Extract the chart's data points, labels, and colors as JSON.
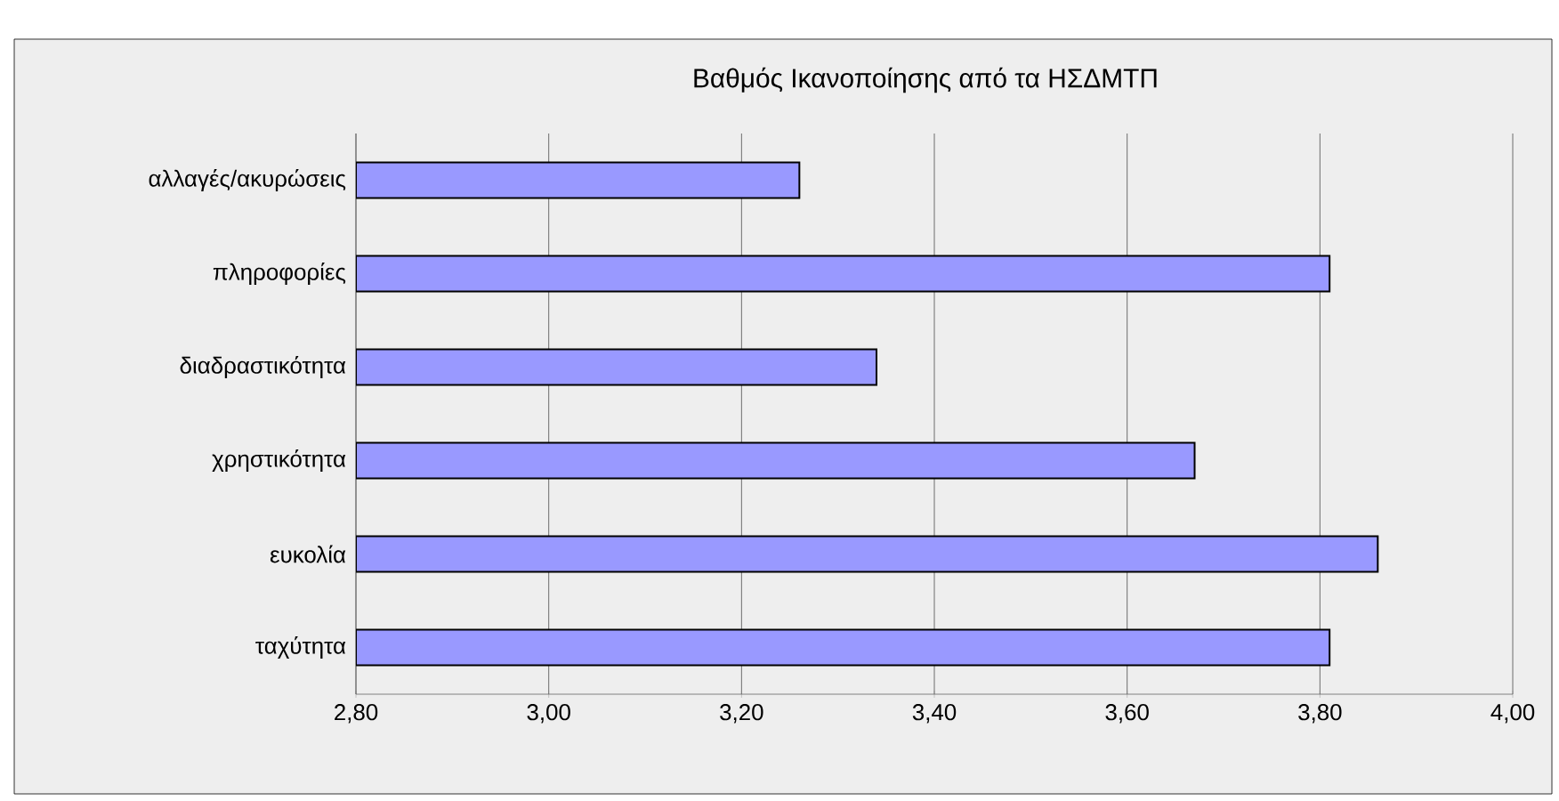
{
  "chart_data": {
    "type": "bar",
    "orientation": "horizontal",
    "title": "Βαθμός Ικανοποίησης από τα ΗΣΔΜΤΠ",
    "categories": [
      "αλλαγές/ακυρώσεις",
      "πληροφορίες",
      "διαδραστικότητα",
      "χρηστικότητα",
      "ευκολία",
      "ταχύτητα"
    ],
    "values": [
      3.26,
      3.81,
      3.34,
      3.67,
      3.86,
      3.81
    ],
    "color": "#9999ff",
    "xlim": [
      2.8,
      4.0
    ],
    "xticks": [
      {
        "value": 2.8,
        "label": "2,80"
      },
      {
        "value": 3.0,
        "label": "3,00"
      },
      {
        "value": 3.2,
        "label": "3,20"
      },
      {
        "value": 3.4,
        "label": "3,40"
      },
      {
        "value": 3.6,
        "label": "3,60"
      },
      {
        "value": 3.8,
        "label": "3,80"
      },
      {
        "value": 4.0,
        "label": "4,00"
      }
    ],
    "grid": "x"
  }
}
